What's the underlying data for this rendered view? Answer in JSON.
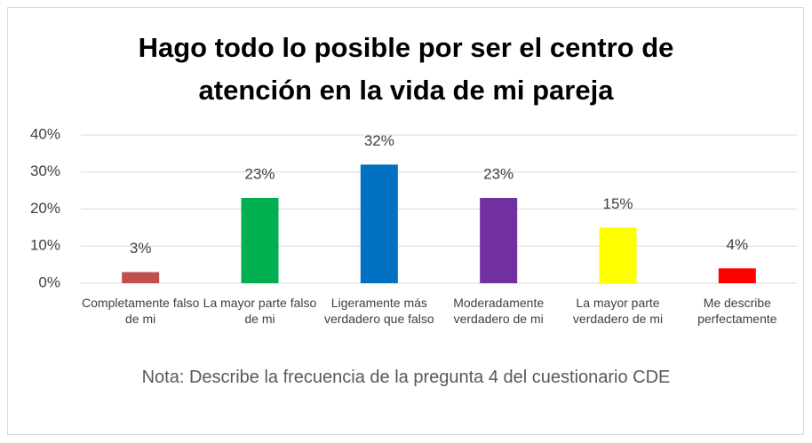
{
  "chart_data": {
    "type": "bar",
    "title": "Hago todo lo posible por ser el centro de atención en la vida de mi pareja",
    "categories": [
      "Completamente falso de mi",
      "La mayor parte falso de mi",
      "Ligeramente más verdadero que falso",
      "Moderadamente verdadero de mi",
      "La mayor parte verdadero de mi",
      "Me describe perfectamente"
    ],
    "values": [
      3,
      23,
      32,
      23,
      15,
      4
    ],
    "value_labels": [
      "3%",
      "23%",
      "32%",
      "23%",
      "15%",
      "4%"
    ],
    "colors": [
      "#c0504d",
      "#00b050",
      "#0070c0",
      "#7030a0",
      "#ffff00",
      "#ff0000"
    ],
    "ylim": [
      0,
      40
    ],
    "yticks": [
      {
        "value": 0,
        "label": "0%"
      },
      {
        "value": 10,
        "label": "10%"
      },
      {
        "value": 20,
        "label": "20%"
      },
      {
        "value": 30,
        "label": "30%"
      },
      {
        "value": 40,
        "label": "40%"
      }
    ],
    "grid": true,
    "note": "Nota: Describe la frecuencia de la pregunta 4 del cuestionario CDE"
  }
}
